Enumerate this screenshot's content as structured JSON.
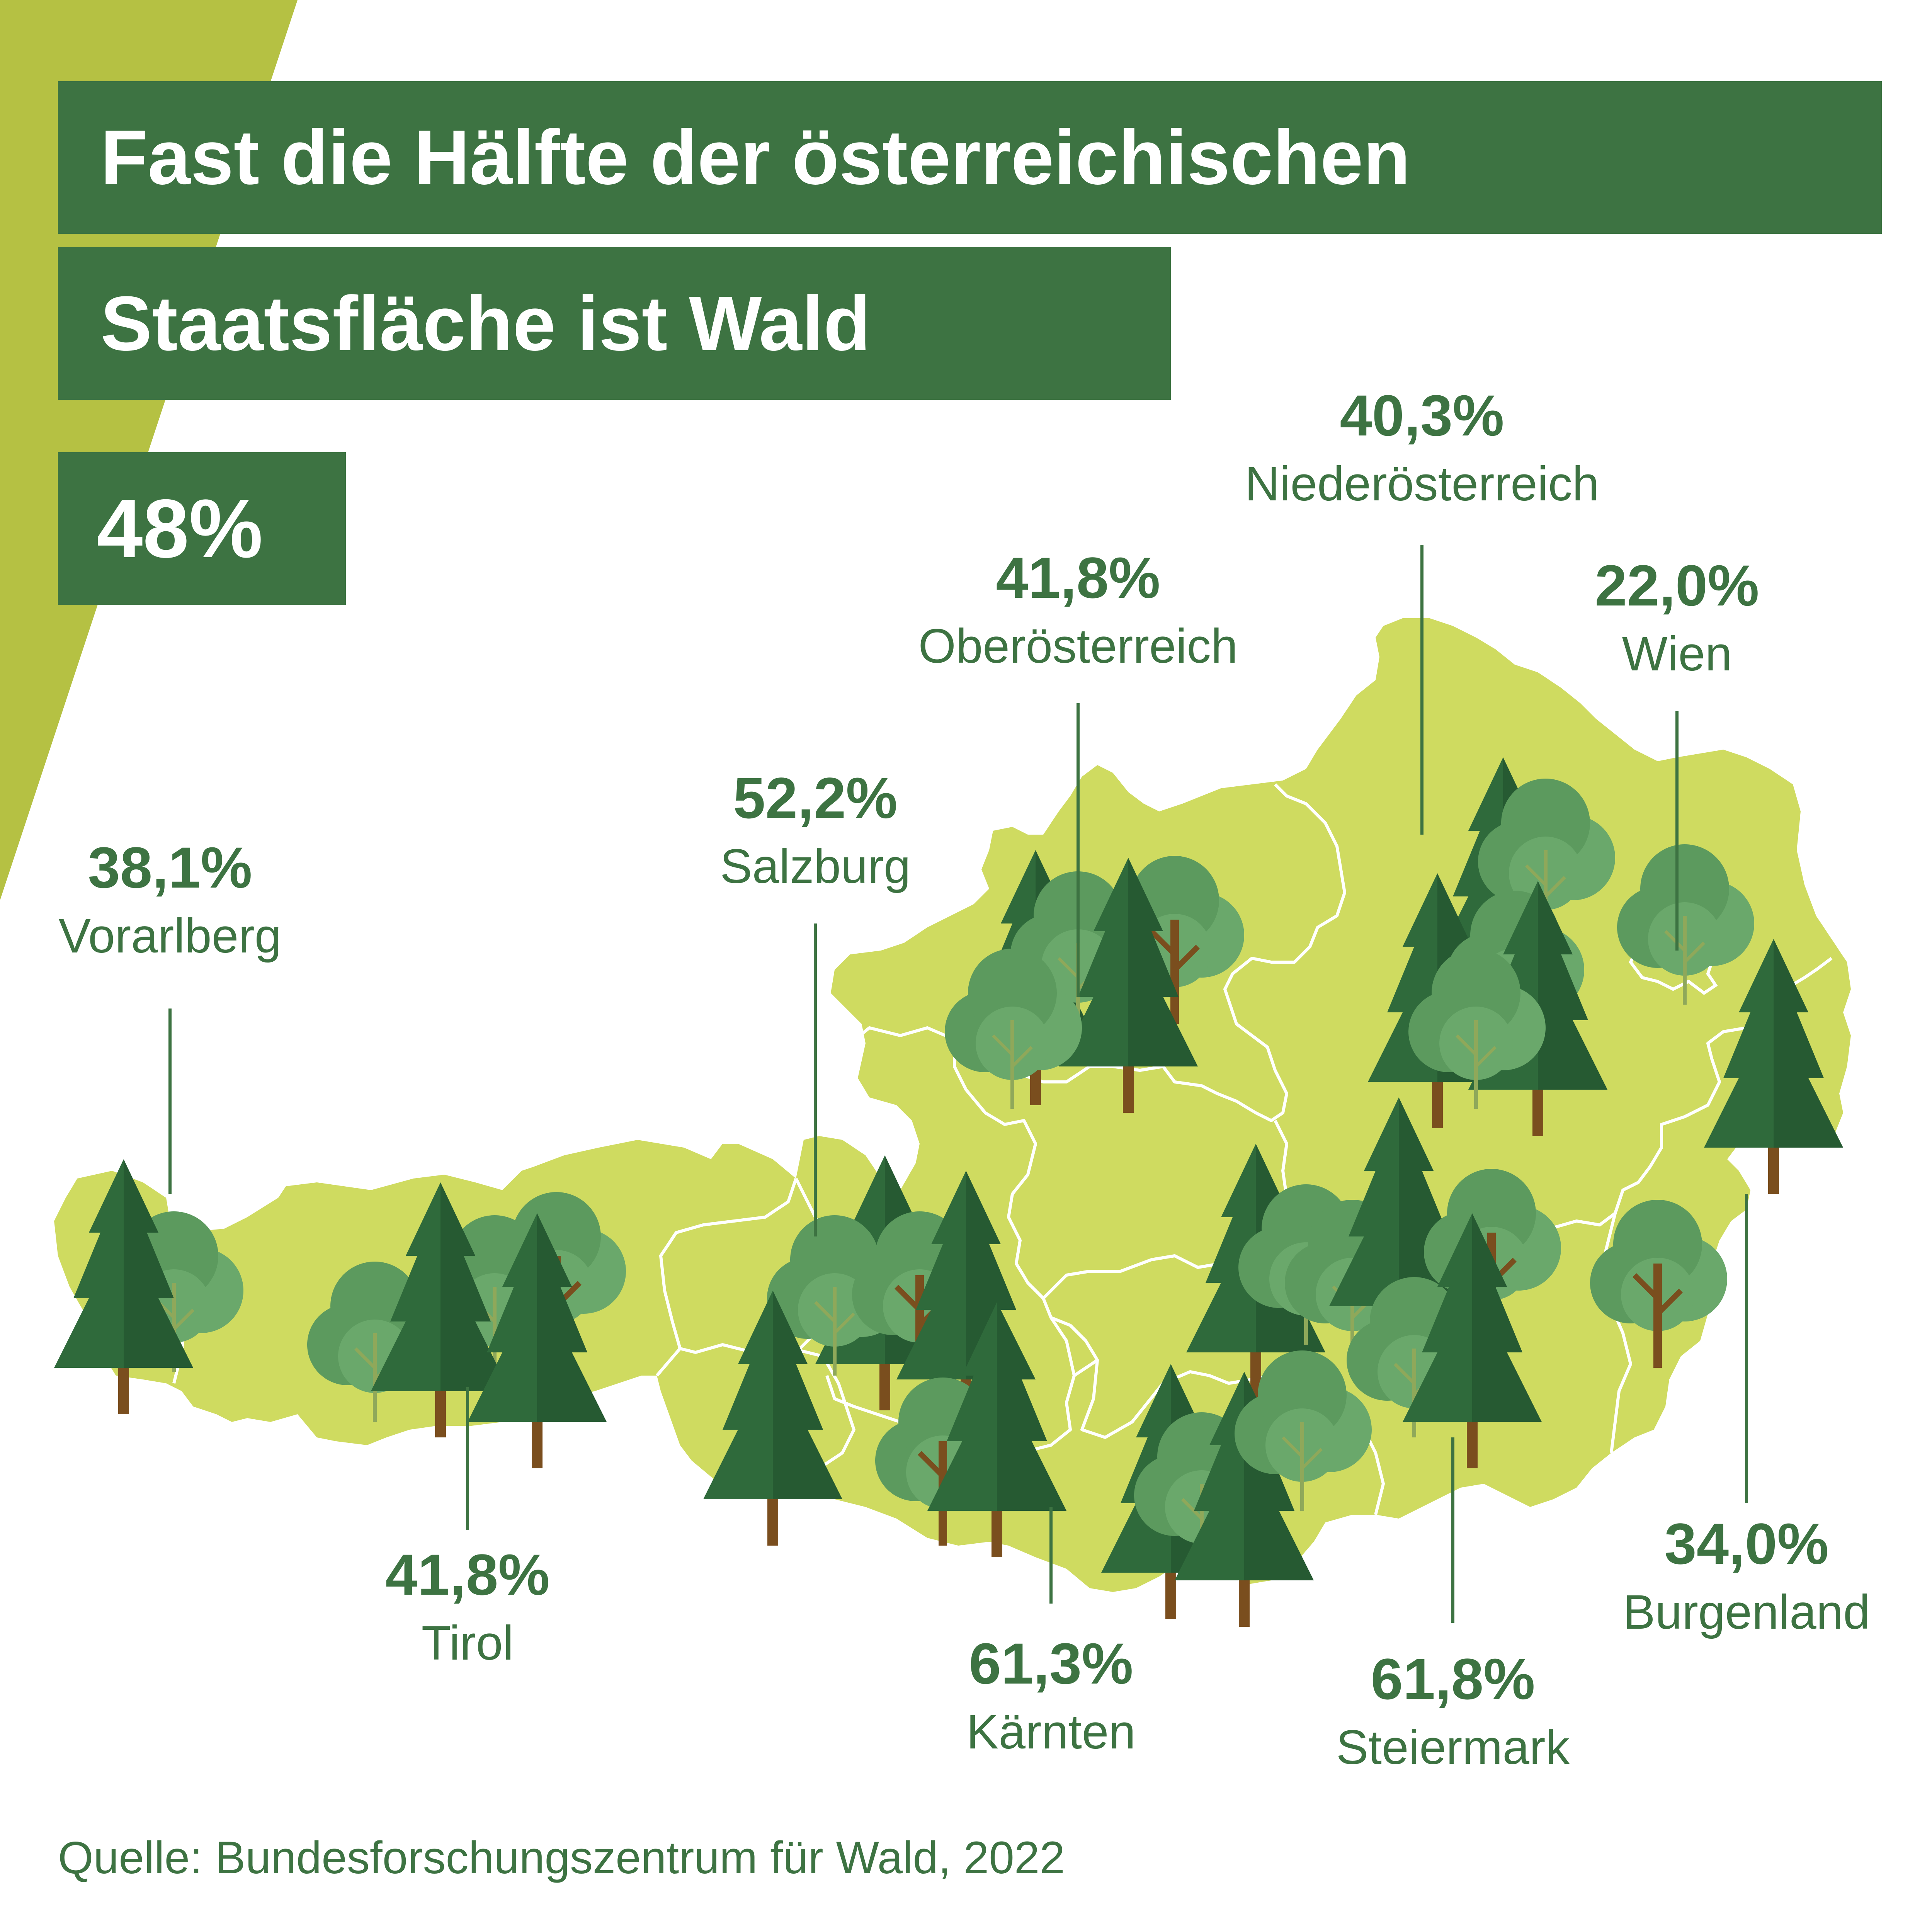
{
  "title": {
    "line1": "Fast die Hälfte der österreichischen",
    "line2": "Staatsfläche ist Wald",
    "total": "48%"
  },
  "colors": {
    "dark_green": "#3d7342",
    "map_fill": "#cfdb60",
    "corner_accent": "#b5c143",
    "conifer": "#2f6a3b",
    "deciduous": "#5c9a5e",
    "trunk": "#7a4e1e"
  },
  "regions": [
    {
      "key": "vorarlberg",
      "name": "Vorarlberg",
      "forest_share": "38,1%"
    },
    {
      "key": "tirol",
      "name": "Tirol",
      "forest_share": "41,8%"
    },
    {
      "key": "salzburg",
      "name": "Salzburg",
      "forest_share": "52,2%"
    },
    {
      "key": "oberoesterreich",
      "name": "Oberösterreich",
      "forest_share": "41,8%"
    },
    {
      "key": "niederoesterreich",
      "name": "Niederösterreich",
      "forest_share": "40,3%"
    },
    {
      "key": "wien",
      "name": "Wien",
      "forest_share": "22,0%"
    },
    {
      "key": "burgenland",
      "name": "Burgenland",
      "forest_share": "34,0%"
    },
    {
      "key": "steiermark",
      "name": "Steiermark",
      "forest_share": "61,8%"
    },
    {
      "key": "kaernten",
      "name": "Kärnten",
      "forest_share": "61,3%"
    }
  ],
  "source": "Quelle: Bundesforschungszentrum für Wald, 2022",
  "icons": [
    "conifer-tree-icon",
    "deciduous-tree-icon"
  ]
}
